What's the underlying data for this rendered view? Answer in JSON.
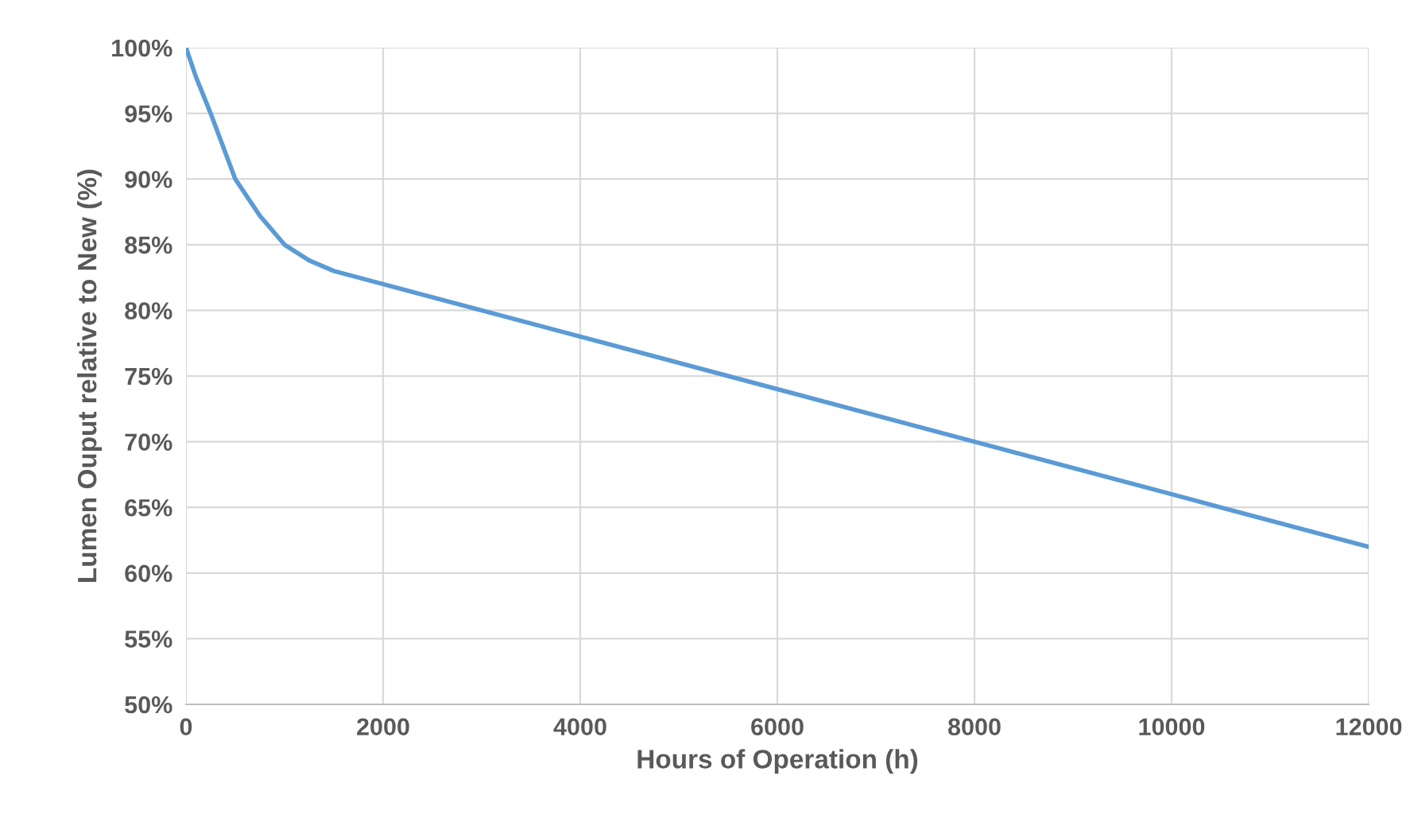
{
  "chart_data": {
    "type": "line",
    "xlabel": "Hours of Operation (h)",
    "ylabel": "Lumen Ouput relative to New (%)",
    "x": [
      0,
      100,
      250,
      400,
      500,
      750,
      1000,
      1250,
      1500,
      1750,
      2000,
      4000,
      6000,
      8000,
      10000,
      12000
    ],
    "series": [
      {
        "color": "#5b9bd5",
        "values": [
          100,
          97.8,
          95,
          92,
          90,
          87.2,
          85,
          83.8,
          83,
          82.5,
          82,
          78,
          74,
          70,
          66,
          62
        ]
      }
    ],
    "xlim": [
      0,
      12000
    ],
    "xticks": [
      0,
      2000,
      4000,
      6000,
      8000,
      10000,
      12000
    ],
    "ylim": [
      50,
      100
    ],
    "yticks": [
      {
        "value": 50,
        "label": "50%"
      },
      {
        "value": 55,
        "label": "55%"
      },
      {
        "value": 60,
        "label": "60%"
      },
      {
        "value": 65,
        "label": "65%"
      },
      {
        "value": 70,
        "label": "70%"
      },
      {
        "value": 75,
        "label": "75%"
      },
      {
        "value": 80,
        "label": "80%"
      },
      {
        "value": 85,
        "label": "85%"
      },
      {
        "value": 90,
        "label": "90%"
      },
      {
        "value": 95,
        "label": "95%"
      },
      {
        "value": 100,
        "label": "100%"
      }
    ],
    "grid": true,
    "marker": "none",
    "line_style": "solid",
    "legend": false
  }
}
